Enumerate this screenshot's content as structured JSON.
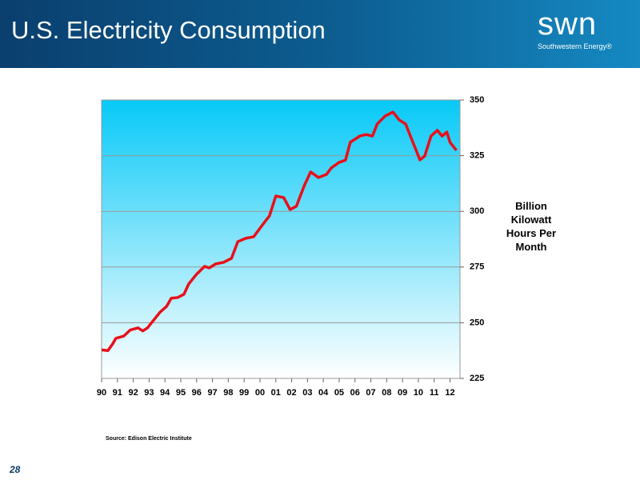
{
  "header": {
    "title": "U.S. Electricity Consumption",
    "logo": "swn",
    "logo_subtitle": "Southwestern Energy®"
  },
  "chart_data": {
    "type": "line",
    "y_axis_label": "Billion Kilowatt Hours Per Month",
    "source": "Source: Edison Electric Institute",
    "x": [
      1990.0,
      1990.4,
      1990.7,
      1990.9,
      1991.4,
      1991.8,
      1992.3,
      1992.6,
      1992.9,
      1993.3,
      1993.7,
      1994.1,
      1994.4,
      1994.8,
      1995.2,
      1995.5,
      1996.0,
      1996.5,
      1996.8,
      1997.2,
      1997.7,
      1998.2,
      1998.6,
      1999.1,
      1999.6,
      2000.2,
      2000.6,
      2001.0,
      2001.5,
      2001.9,
      2002.3,
      2002.8,
      2003.2,
      2003.7,
      2004.2,
      2004.5,
      2005.0,
      2005.4,
      2005.7,
      2006.3,
      2006.7,
      2007.1,
      2007.4,
      2007.9,
      2008.4,
      2008.8,
      2009.2,
      2009.6,
      2009.8,
      2010.1,
      2010.4,
      2010.8,
      2011.2,
      2011.5,
      2011.8,
      2012.0,
      2012.4
    ],
    "series": [
      {
        "name": "Electricity Consumption",
        "color": "#e8101a",
        "values": [
          237.8,
          237.5,
          240.5,
          243,
          244,
          246.7,
          247.7,
          246.3,
          247.7,
          251.3,
          254.8,
          257.3,
          261,
          261.3,
          262.8,
          267.4,
          271.8,
          275.3,
          274.6,
          276.4,
          277.1,
          278.9,
          286.4,
          287.9,
          288.6,
          294.3,
          298,
          306.9,
          306.2,
          300.8,
          302.3,
          311.6,
          317.7,
          315.2,
          316.6,
          319.5,
          322,
          323,
          331,
          333.8,
          334.5,
          333.8,
          339.2,
          342.8,
          344.6,
          341,
          339.2,
          332,
          328.5,
          323.1,
          324.8,
          333.8,
          336.4,
          333.8,
          335.6,
          331,
          327.4
        ]
      }
    ],
    "xlim": [
      1990,
      2012.63
    ],
    "xticks": [
      {
        "value": 1990,
        "label": "90"
      },
      {
        "value": 1991,
        "label": "91"
      },
      {
        "value": 1992,
        "label": "92"
      },
      {
        "value": 1993,
        "label": "93"
      },
      {
        "value": 1994,
        "label": "94"
      },
      {
        "value": 1995,
        "label": "95"
      },
      {
        "value": 1996,
        "label": "96"
      },
      {
        "value": 1997,
        "label": "97"
      },
      {
        "value": 1998,
        "label": "98"
      },
      {
        "value": 1999,
        "label": "99"
      },
      {
        "value": 2000,
        "label": "00"
      },
      {
        "value": 2001,
        "label": "01"
      },
      {
        "value": 2002,
        "label": "02"
      },
      {
        "value": 2003,
        "label": "03"
      },
      {
        "value": 2004,
        "label": "04"
      },
      {
        "value": 2005,
        "label": "05"
      },
      {
        "value": 2006,
        "label": "06"
      },
      {
        "value": 2007,
        "label": "07"
      },
      {
        "value": 2008,
        "label": "08"
      },
      {
        "value": 2009,
        "label": "09"
      },
      {
        "value": 2010,
        "label": "10"
      },
      {
        "value": 2011,
        "label": "11"
      },
      {
        "value": 2012,
        "label": "12"
      }
    ],
    "ylim": [
      225,
      350
    ],
    "yticks": [
      225,
      250,
      275,
      300,
      325,
      350
    ],
    "grid": true
  },
  "footer": {
    "page": "28"
  }
}
